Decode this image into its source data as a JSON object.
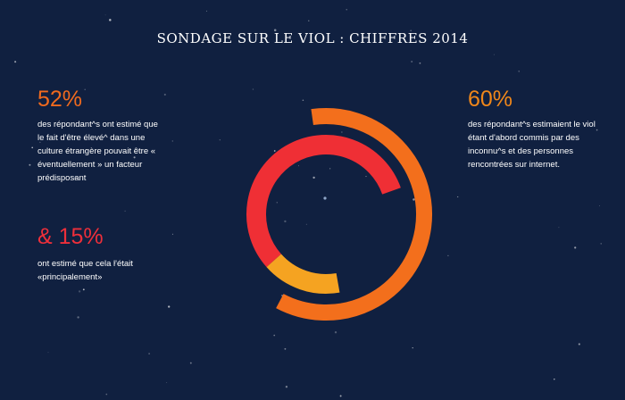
{
  "title": "SONDAGE SUR LE VIOL : CHIFFRES 2014",
  "left_top": {
    "stat": "52%",
    "text": "des répondant^s ont estimé que le fait d'être élevé^ dans une culture étrangère pouvait être « éventuellement » un facteur prédisposant"
  },
  "left_bottom": {
    "stat": "& 15%",
    "text": "ont estimé que cela l'était «principalement»"
  },
  "right_top": {
    "stat": "60%",
    "text": "des répondant^s estimaient le viol étant d'abord commis par des inconnu^s et des personnes rencontrées sur internet."
  },
  "colors": {
    "background": "#102040",
    "outer_ring": "#f36f1c",
    "inner_ring_main": "#ef2f35",
    "inner_ring_secondary": "#f5a321"
  },
  "chart_data": {
    "type": "pie",
    "style": "concentric-rings",
    "rings": [
      {
        "label": "60%",
        "value": 60,
        "color": "#f36f1c"
      },
      {
        "label": "52%",
        "value": 52,
        "color": "#ef2f35"
      },
      {
        "label": "15%",
        "value": 15,
        "color": "#f5a321"
      }
    ]
  }
}
